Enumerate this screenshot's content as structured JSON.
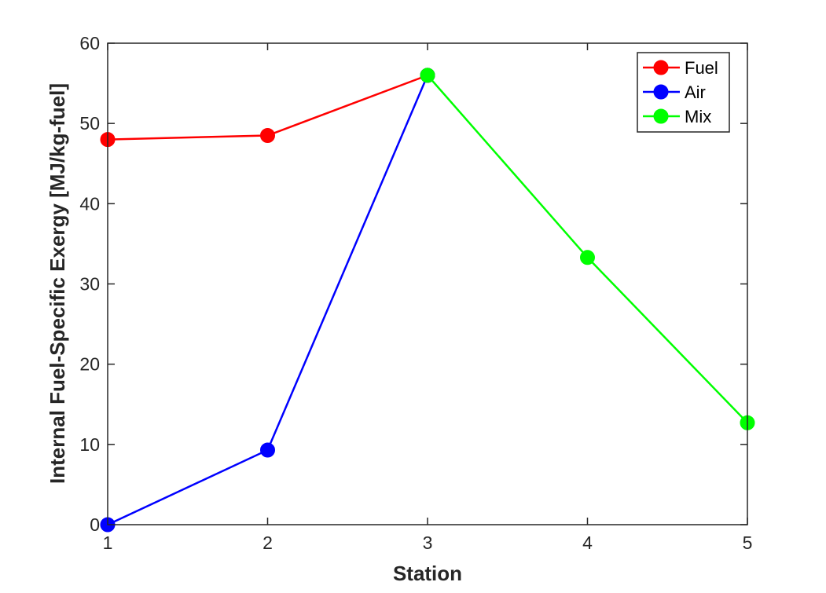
{
  "chart_data": {
    "type": "line",
    "title": "",
    "xlabel": "Station",
    "ylabel": "Internal Fuel-Specific Exergy [MJ/kg-fuel]",
    "xlim": [
      1,
      5
    ],
    "ylim": [
      0,
      60
    ],
    "xticks": [
      "1",
      "2",
      "3",
      "4",
      "5"
    ],
    "yticks": [
      "0",
      "10",
      "20",
      "30",
      "40",
      "50",
      "60"
    ],
    "grid": false,
    "legend_position": "top-right",
    "series": [
      {
        "name": "Fuel",
        "color": "#ff0000",
        "x": [
          1,
          2,
          3
        ],
        "y": [
          48.0,
          48.5,
          56.0
        ]
      },
      {
        "name": "Air",
        "color": "#0000ff",
        "x": [
          1,
          2,
          3
        ],
        "y": [
          0.0,
          9.3,
          56.0
        ]
      },
      {
        "name": "Mix",
        "color": "#00ff00",
        "x": [
          3,
          4,
          5
        ],
        "y": [
          56.0,
          33.3,
          12.7
        ]
      }
    ]
  }
}
